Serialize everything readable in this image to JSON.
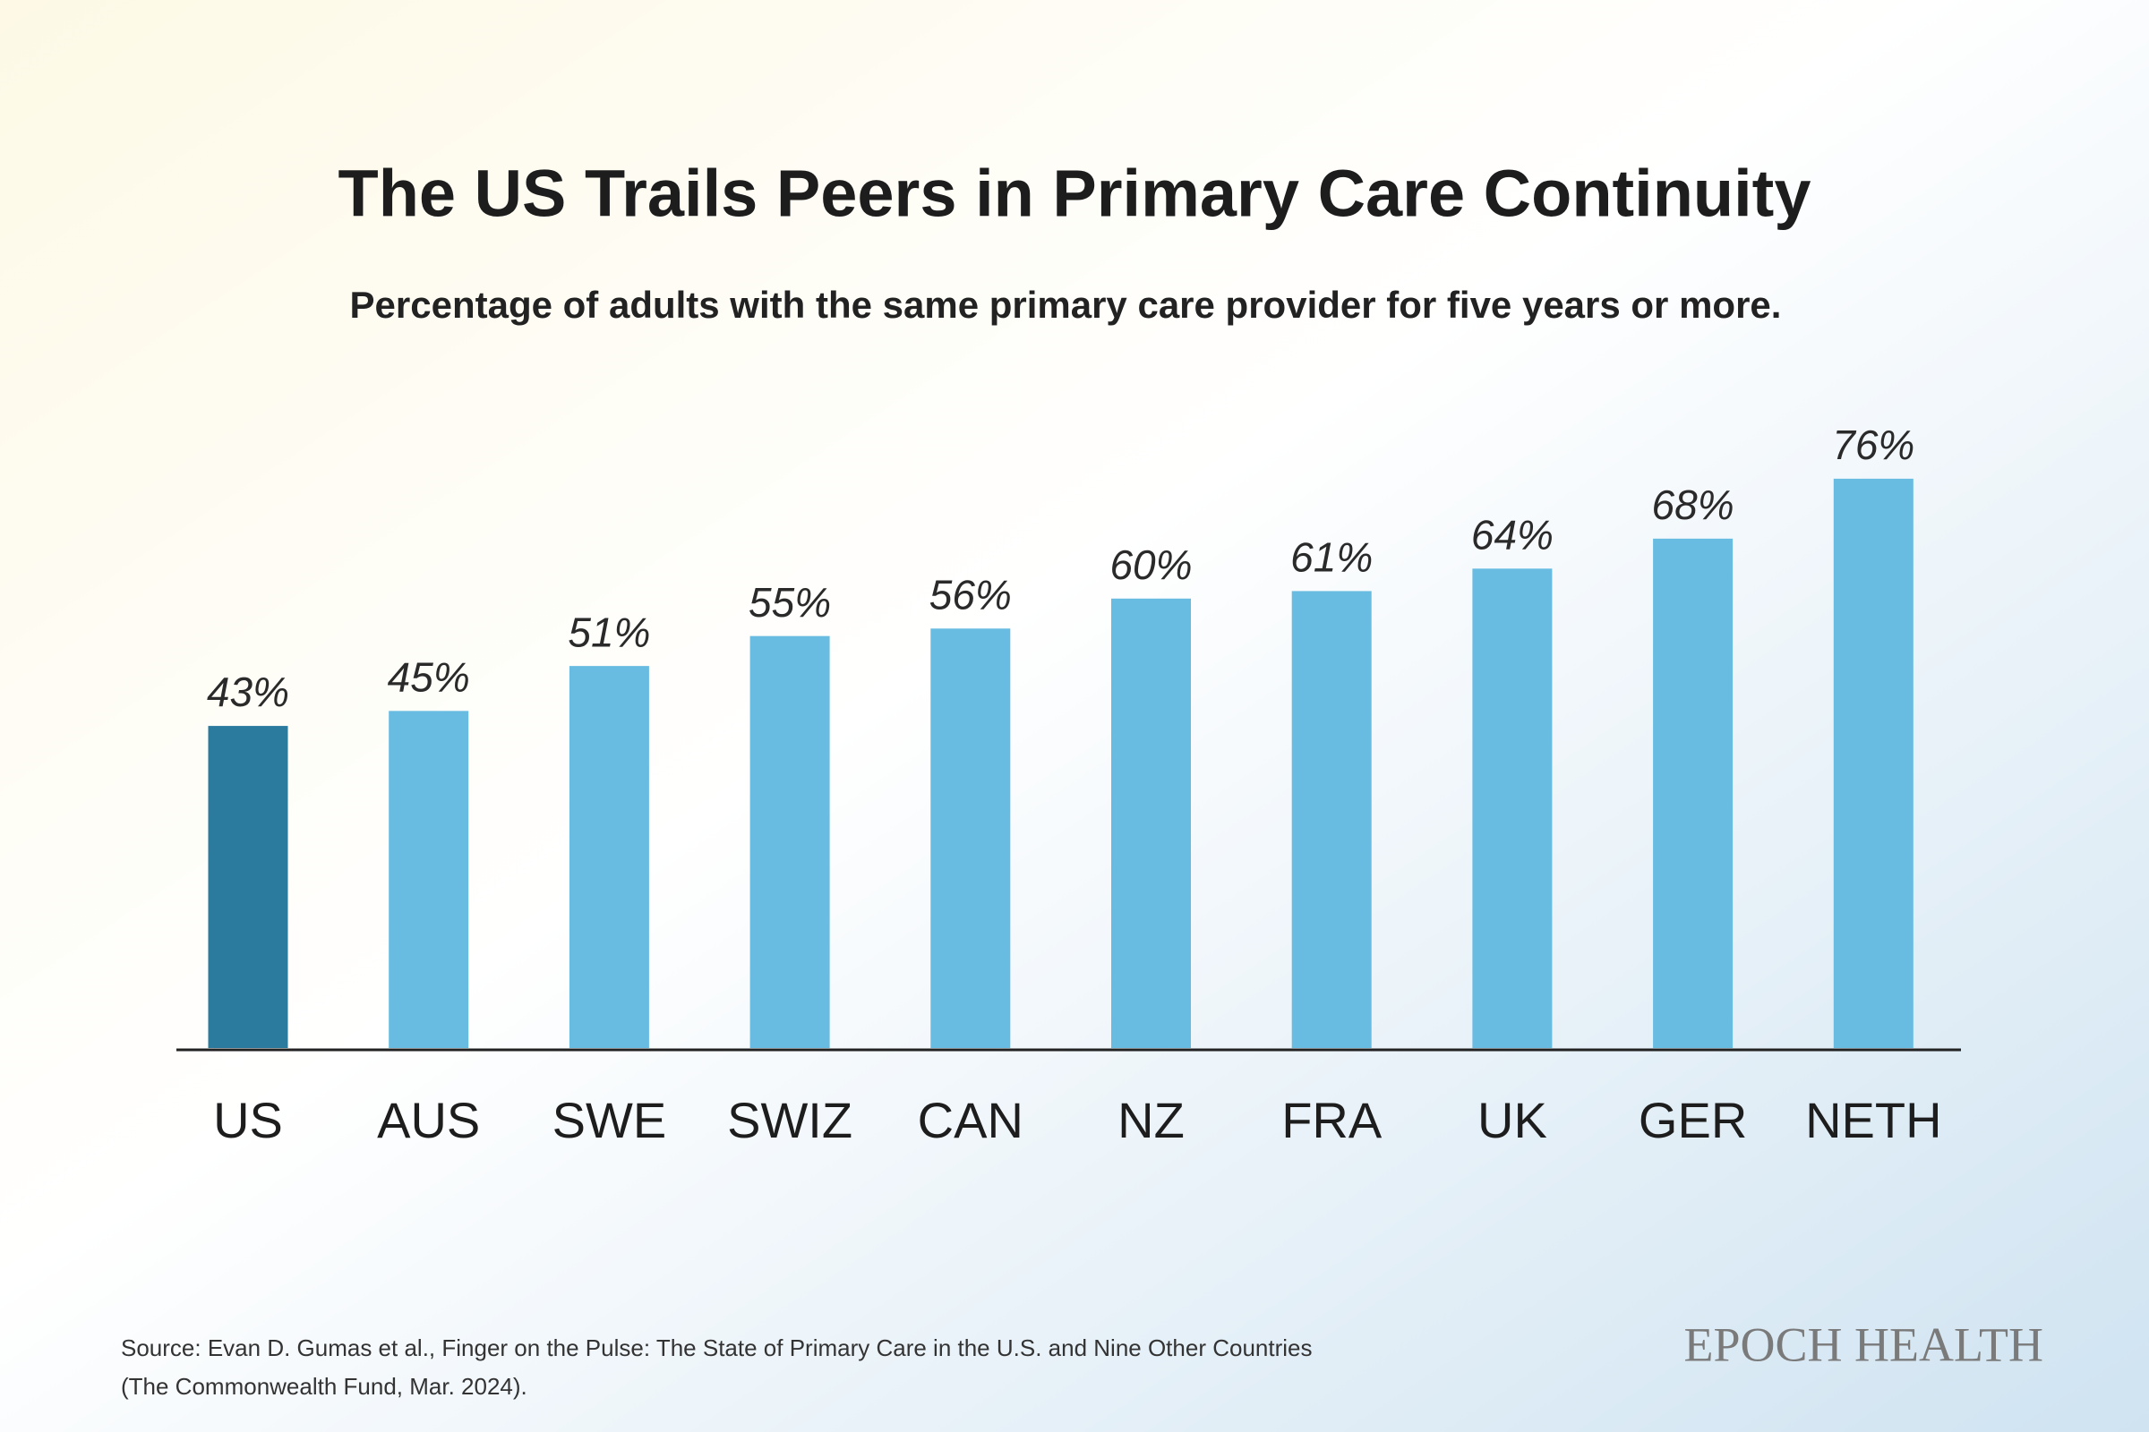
{
  "chart_data": {
    "type": "bar",
    "title": "The US Trails Peers in Primary Care Continuity",
    "subtitle": "Percentage of adults with the same primary care provider for five years or more.",
    "categories": [
      "US",
      "AUS",
      "SWE",
      "SWIZ",
      "CAN",
      "NZ",
      "FRA",
      "UK",
      "GER",
      "NETH"
    ],
    "values": [
      43,
      45,
      51,
      55,
      56,
      60,
      61,
      64,
      68,
      76
    ],
    "value_labels": [
      "43%",
      "45%",
      "51%",
      "55%",
      "56%",
      "60%",
      "61%",
      "64%",
      "68%",
      "76%"
    ],
    "colors": [
      "#2b7b9f",
      "#68bbe1",
      "#68bbe1",
      "#68bbe1",
      "#68bbe1",
      "#68bbe1",
      "#68bbe1",
      "#68bbe1",
      "#68bbe1",
      "#68bbe1"
    ],
    "source": [
      "Source: Evan D. Gumas et al., Finger on the Pulse: The State of Primary Care in the U.S. and Nine Other Countries",
      "(The Commonwealth Fund, Mar. 2024)."
    ],
    "brand": "EPOCH HEALTH"
  }
}
